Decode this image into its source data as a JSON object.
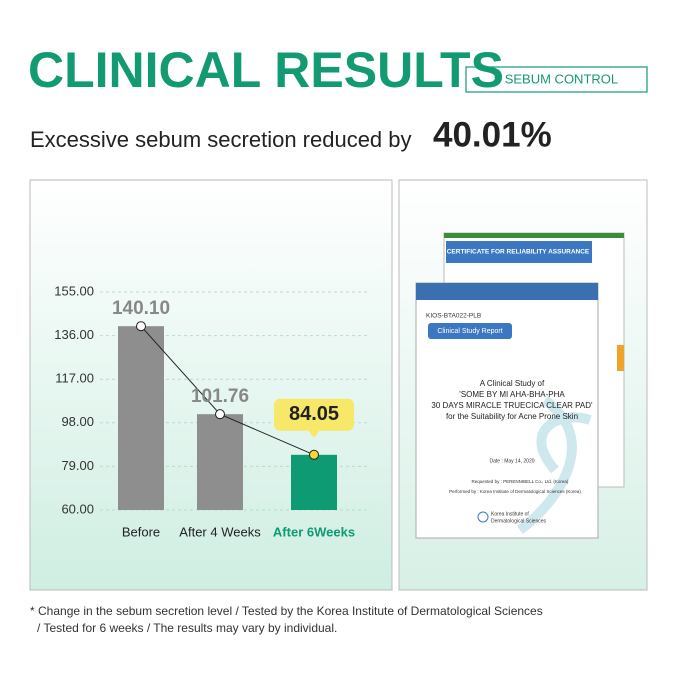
{
  "header": {
    "title": "CLINICAL RESULTS",
    "tag": "# SEBUM CONTROL",
    "subtitle": "Excessive sebum secretion reduced by",
    "highlight": "40.01%"
  },
  "chart_data": {
    "type": "bar",
    "categories": [
      "Before",
      "After 4 Weeks",
      "After 6Weeks"
    ],
    "values": [
      140.1,
      101.76,
      84.05
    ],
    "value_labels": [
      "140.10",
      "101.76",
      "84.05"
    ],
    "colors": [
      "#8e8e8e",
      "#8e8e8e",
      "#0e9a72"
    ],
    "line_color": "#222222",
    "ylim": [
      60,
      155
    ],
    "yticks": [
      {
        "value": 60,
        "label": "60.00"
      },
      {
        "value": 79,
        "label": "79.00"
      },
      {
        "value": 98,
        "label": "98.00"
      },
      {
        "value": 117,
        "label": "117.00"
      },
      {
        "value": 136,
        "label": "136.00"
      },
      {
        "value": 155,
        "label": "155.00"
      }
    ],
    "grid": true
  },
  "documents": {
    "certificate": "CERTIFICATE FOR RELIABILITY ASSURANCE",
    "code": "KIOS-BTA022-PLB",
    "report": "Clinical Study Report",
    "study": [
      "A Clinical Study of",
      "'SOME BY MI AHA-BHA-PHA",
      "30 DAYS MIRACLE TRUECICA CLEAR PAD'",
      "for the Suitability for Acne Prone Skin"
    ],
    "date": "Date : May 14, 2020",
    "requested": "Requested by : PERENNIBELL Co., Ltd. (Korea)",
    "performed": "Performed by : Korea Institute of Dermatological Sciences (Korea)",
    "institute": [
      "Korea Institute of",
      "Dermatological Sciences"
    ]
  },
  "footnote": [
    "* Change in the sebum secretion level / Tested by the Korea Institute of Dermatological Sciences",
    "/ Tested for 6 weeks / The results may vary by individual."
  ]
}
